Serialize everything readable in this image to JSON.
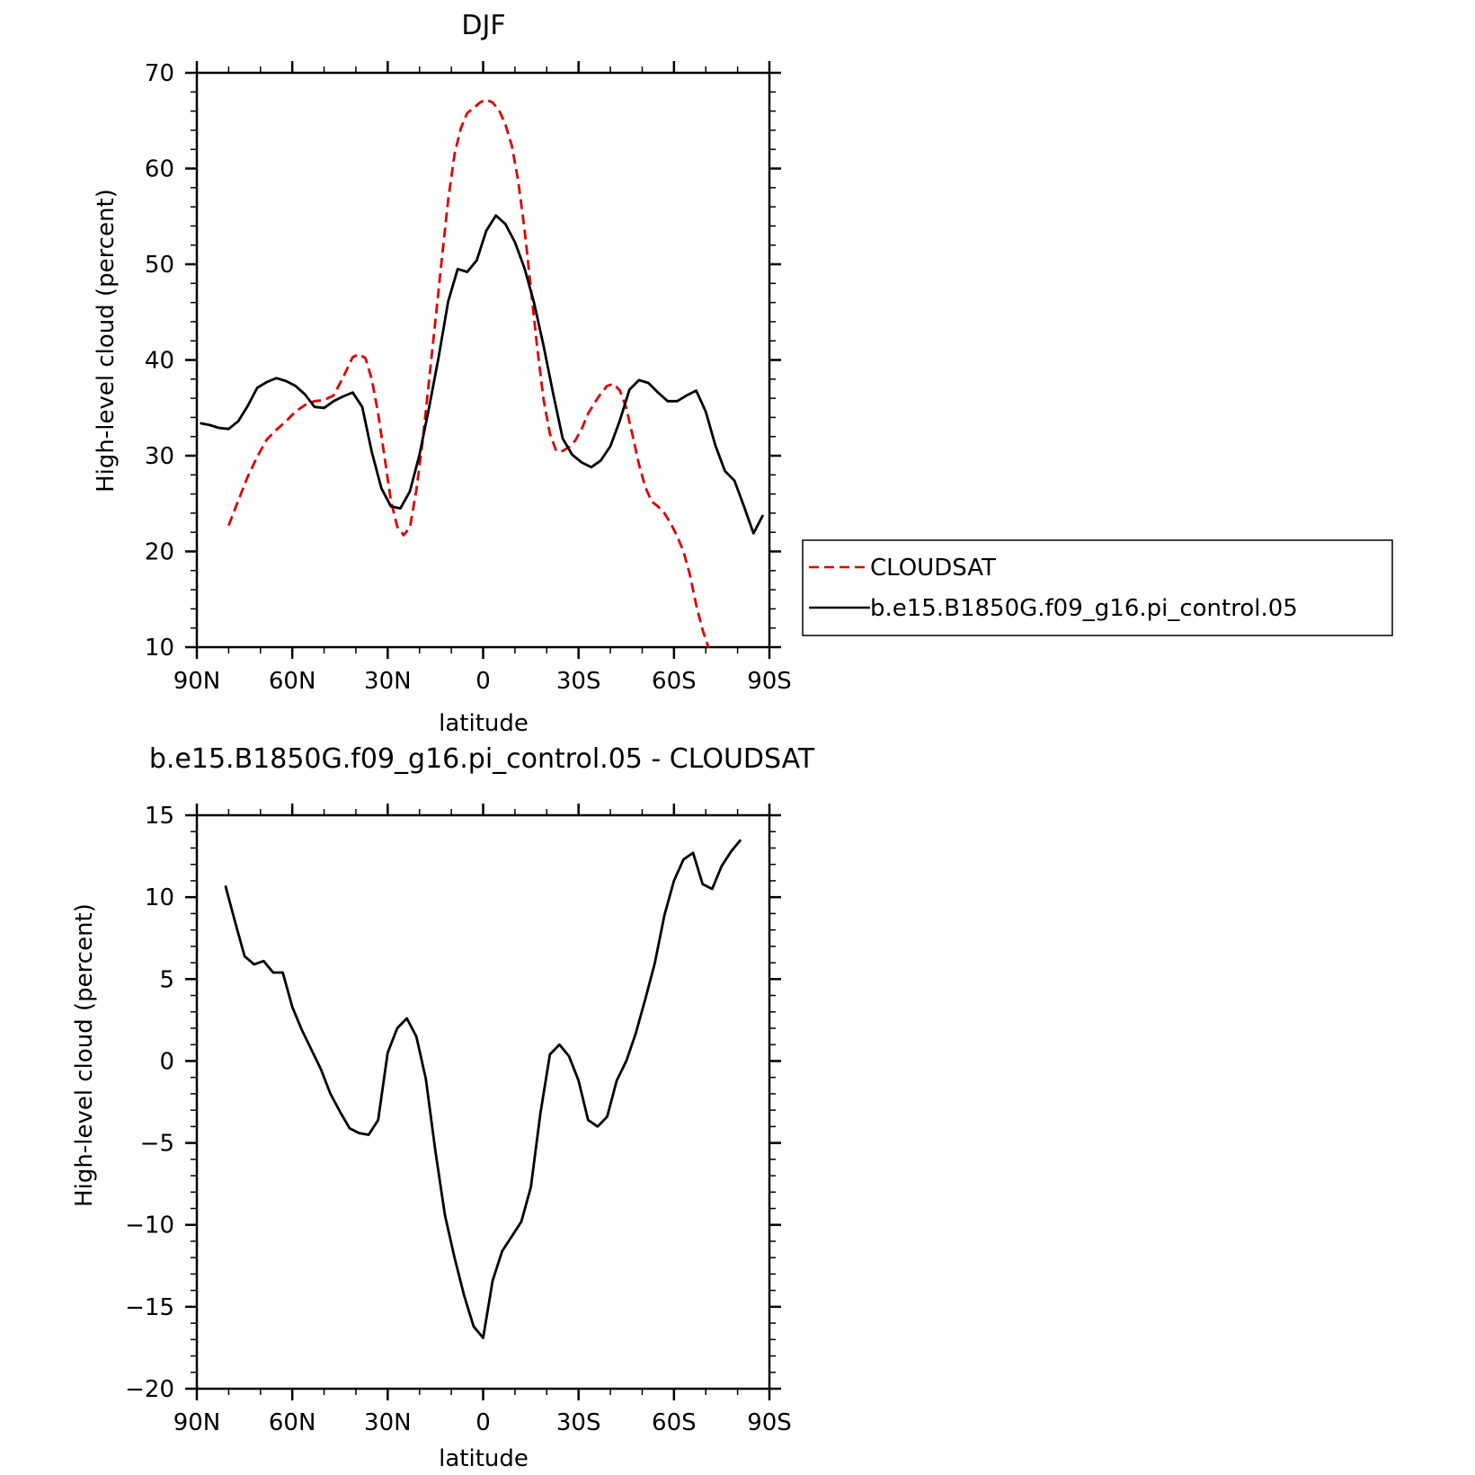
{
  "chart_data": [
    {
      "type": "line",
      "title": "DJF",
      "xlabel": "latitude",
      "ylabel": "High-level cloud (percent)",
      "xlim": [
        90,
        -90
      ],
      "ylim": [
        10,
        70
      ],
      "xticks": [
        90,
        60,
        30,
        0,
        -30,
        -60,
        -90
      ],
      "xtick_labels": [
        "90N",
        "60N",
        "30N",
        "0",
        "30S",
        "60S",
        "90S"
      ],
      "yticks": [
        10,
        20,
        30,
        40,
        50,
        60,
        70
      ],
      "ytick_labels": [
        "10",
        "20",
        "30",
        "40",
        "50",
        "60",
        "70"
      ],
      "grid": false,
      "legend_position": "right",
      "series": [
        {
          "name": "CLOUDSAT",
          "color": "#e00000",
          "dash": "dashed",
          "x": [
            80,
            77,
            74,
            71,
            68,
            65,
            62,
            59,
            56,
            53,
            50,
            47,
            44,
            41,
            39,
            37,
            35,
            33,
            31,
            29,
            27,
            25,
            23,
            21,
            19,
            17,
            15,
            13,
            11,
            9,
            7,
            5,
            3,
            1,
            -1,
            -3,
            -5,
            -7,
            -9,
            -11,
            -13,
            -15,
            -17,
            -19,
            -21,
            -23,
            -25,
            -27,
            -29,
            -31,
            -33,
            -35,
            -37,
            -39,
            -41,
            -43,
            -45,
            -47,
            -49,
            -51,
            -53,
            -55,
            -57,
            -59,
            -61,
            -63,
            -65,
            -67,
            -69,
            -71,
            -73,
            -75,
            -77,
            -79,
            -81
          ],
          "y": [
            22.7,
            25.3,
            27.8,
            29.9,
            31.7,
            32.7,
            33.6,
            34.6,
            35.3,
            35.7,
            35.8,
            36.3,
            38.2,
            40.3,
            40.6,
            40.2,
            38.0,
            34.4,
            29.9,
            25.3,
            22.6,
            21.7,
            22.5,
            26.4,
            31.6,
            37.8,
            44.1,
            50.5,
            56.7,
            61.5,
            64.2,
            65.8,
            66.3,
            66.9,
            67.2,
            66.9,
            66.1,
            64.6,
            62.4,
            58.8,
            53.7,
            47.5,
            41.3,
            35.9,
            32.3,
            30.5,
            30.5,
            30.9,
            31.6,
            32.8,
            34.4,
            35.5,
            36.5,
            37.3,
            37.5,
            36.8,
            35.0,
            32.1,
            29.1,
            26.7,
            25.2,
            24.7,
            24.0,
            22.9,
            21.6,
            20.0,
            17.6,
            14.4,
            11.8,
            9.8,
            9.8,
            9.8,
            9.8,
            9.8,
            9.8
          ]
        },
        {
          "name": "b.e15.B1850G.f09_g16.pi_control.05",
          "color": "#000000",
          "dash": "solid",
          "x": [
            89,
            86,
            83,
            80,
            77,
            74,
            71,
            68,
            65,
            62,
            59,
            56,
            53,
            50,
            47,
            44,
            41,
            38,
            35,
            32,
            29,
            26,
            23,
            20,
            17,
            14,
            11,
            8,
            5,
            2,
            -1,
            -4,
            -7,
            -10,
            -13,
            -16,
            -19,
            -22,
            -25,
            -28,
            -31,
            -34,
            -37,
            -40,
            -43,
            -46,
            -49,
            -52,
            -55,
            -58,
            -61,
            -64,
            -67,
            -70,
            -73,
            -76,
            -79,
            -82,
            -85,
            -88
          ],
          "y": [
            33.4,
            33.2,
            32.9,
            32.8,
            33.6,
            35.2,
            37.1,
            37.7,
            38.1,
            37.8,
            37.3,
            36.4,
            35.1,
            35.0,
            35.7,
            36.2,
            36.6,
            35.1,
            30.4,
            26.6,
            24.7,
            24.5,
            26.3,
            30.1,
            35.0,
            40.3,
            46.1,
            49.5,
            49.2,
            50.4,
            53.5,
            55.1,
            54.2,
            52.3,
            49.6,
            46.0,
            41.5,
            36.5,
            31.8,
            30.1,
            29.3,
            28.8,
            29.5,
            31.0,
            33.7,
            36.9,
            37.9,
            37.6,
            36.6,
            35.7,
            35.7,
            36.3,
            36.8,
            34.6,
            31.1,
            28.4,
            27.4,
            24.7,
            21.9,
            23.8
          ]
        }
      ]
    },
    {
      "type": "line",
      "title": "b.e15.B1850G.f09_g16.pi_control.05 - CLOUDSAT",
      "xlabel": "latitude",
      "ylabel": "High-level cloud (percent)",
      "xlim": [
        90,
        -90
      ],
      "ylim": [
        -20,
        15
      ],
      "xticks": [
        90,
        60,
        30,
        0,
        -30,
        -60,
        -90
      ],
      "xtick_labels": [
        "90N",
        "60N",
        "30N",
        "0",
        "30S",
        "60S",
        "90S"
      ],
      "yticks": [
        -20,
        -15,
        -10,
        -5,
        0,
        5,
        10,
        15
      ],
      "ytick_labels": [
        "−20",
        "−15",
        "−10",
        "−5",
        "0",
        "5",
        "10",
        "15"
      ],
      "grid": false,
      "series": [
        {
          "color": "#000000",
          "dash": "solid",
          "x": [
            81,
            78,
            75,
            72,
            69,
            66,
            63,
            60,
            57,
            54,
            51,
            48,
            45,
            42,
            39,
            36,
            33,
            30,
            27,
            24,
            21,
            18,
            15,
            12,
            9,
            6,
            3,
            0,
            -3,
            -6,
            -9,
            -12,
            -15,
            -18,
            -21,
            -24,
            -27,
            -30,
            -33,
            -36,
            -39,
            -42,
            -45,
            -48,
            -51,
            -54,
            -57,
            -60,
            -63,
            -66,
            -69,
            -72,
            -75,
            -78,
            -81
          ],
          "y": [
            10.7,
            8.5,
            6.4,
            5.9,
            6.1,
            5.4,
            5.4,
            3.3,
            1.9,
            0.7,
            -0.5,
            -2.0,
            -3.1,
            -4.1,
            -4.4,
            -4.5,
            -3.6,
            0.5,
            2.0,
            2.6,
            1.5,
            -1.1,
            -5.5,
            -9.4,
            -12.0,
            -14.3,
            -16.2,
            -16.9,
            -13.4,
            -11.6,
            -10.7,
            -9.8,
            -7.7,
            -3.2,
            0.4,
            1.0,
            0.3,
            -1.2,
            -3.6,
            -4.0,
            -3.4,
            -1.2,
            0.0,
            1.7,
            3.8,
            6.0,
            8.9,
            11.0,
            12.3,
            12.7,
            10.8,
            10.5,
            11.9,
            12.8,
            13.5
          ]
        }
      ]
    }
  ]
}
